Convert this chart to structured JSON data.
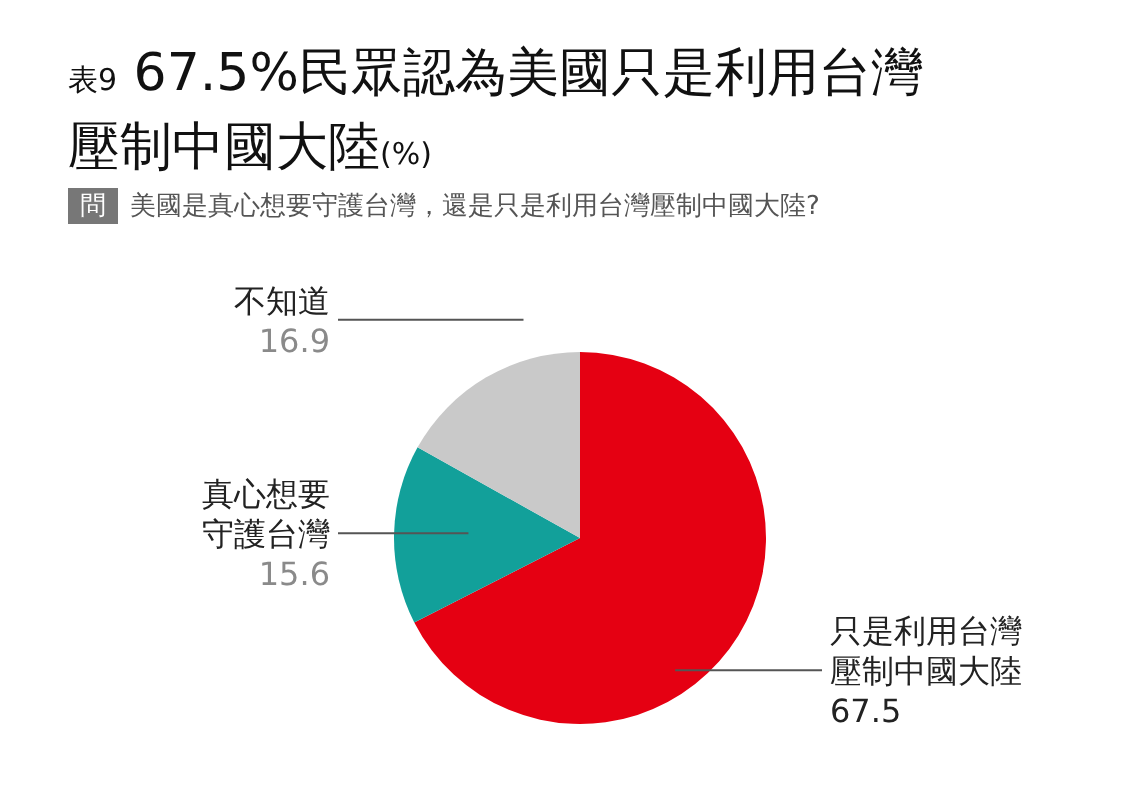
{
  "chart_data": {
    "type": "pie",
    "title": "表9 67.5%民眾認為美國只是利用台灣壓制中國大陸(%)",
    "subtitle": "美國是真心想要守護台灣，還是只是利用台灣壓制中國大陸?",
    "annotations": [
      "問"
    ],
    "categories": [
      "只是利用台灣壓制中國大陸",
      "真心想要守護台灣",
      "不知道"
    ],
    "values": [
      67.5,
      15.6,
      16.9
    ],
    "colors": [
      "#e50012",
      "#12a09a",
      "#c9c9c9"
    ],
    "data_labels": true
  }
}
